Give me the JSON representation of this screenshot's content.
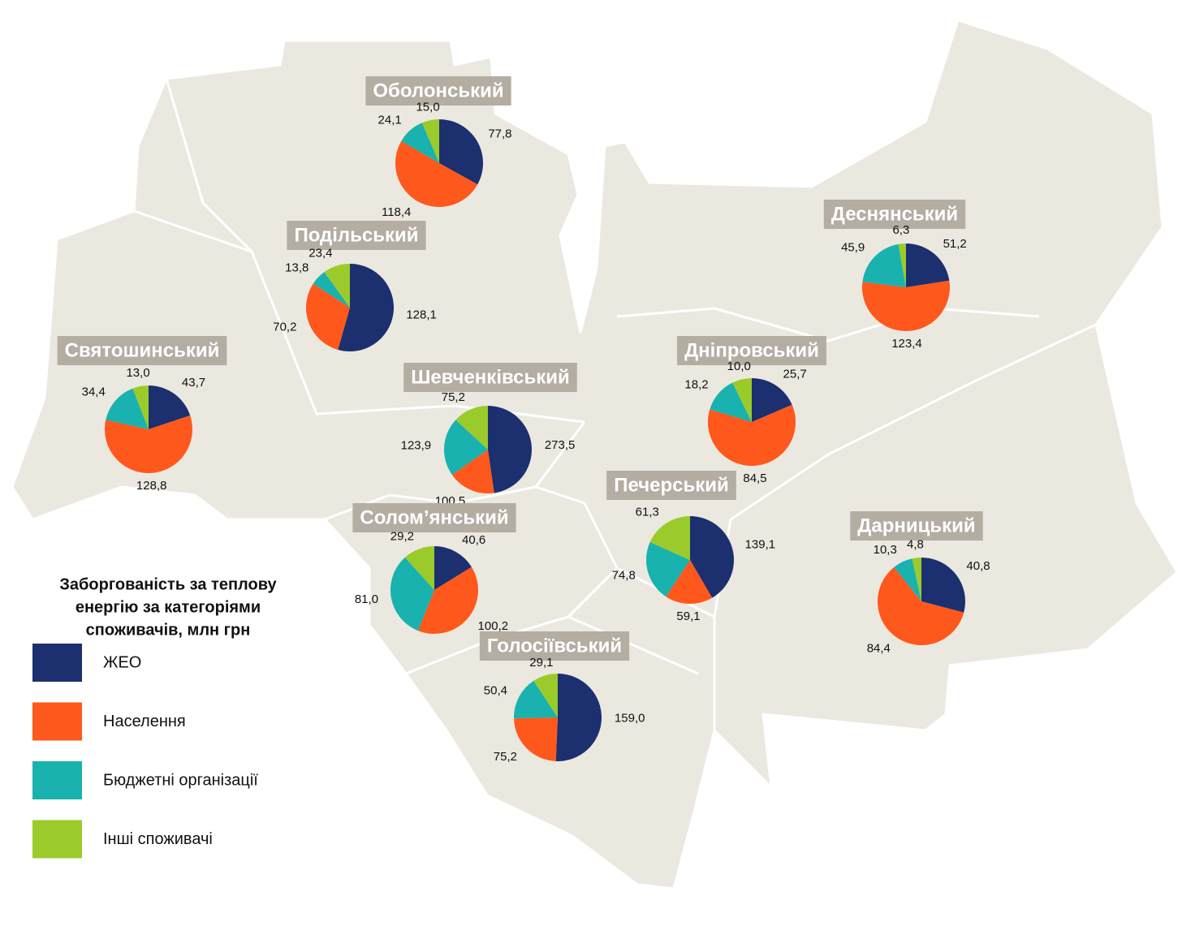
{
  "legend": {
    "title": [
      "Заборгованість за теплову",
      "енергію за категоріями",
      "споживачів, млн грн"
    ],
    "items": [
      {
        "name": "ЖЕО",
        "color": "#1c2f6e"
      },
      {
        "name": "Населення",
        "color": "#ff581c"
      },
      {
        "name": "Бюджетні організації",
        "color": "#19b2ae"
      },
      {
        "name": "Інші споживачі",
        "color": "#9bcb2a"
      }
    ]
  },
  "districts": [
    {
      "name": "Оболонський",
      "values": [
        77.8,
        118.4,
        24.1,
        15.0
      ],
      "value_labels": [
        "77,8",
        "118,4",
        "24,1",
        "15,0"
      ]
    },
    {
      "name": "Подільський",
      "values": [
        128.1,
        70.2,
        13.8,
        23.4
      ],
      "value_labels": [
        "128,1",
        "70,2",
        "13,8",
        "23,4"
      ]
    },
    {
      "name": "Святошинський",
      "values": [
        43.7,
        128.8,
        34.4,
        13.0
      ],
      "value_labels": [
        "43,7",
        "128,8",
        "34,4",
        "13,0"
      ]
    },
    {
      "name": "Шевченківський",
      "values": [
        273.5,
        100.5,
        123.9,
        75.2
      ],
      "value_labels": [
        "273,5",
        "100,5",
        "123,9",
        "75,2"
      ]
    },
    {
      "name": "Солом’янський",
      "values": [
        40.6,
        100.2,
        81.0,
        29.2
      ],
      "value_labels": [
        "40,6",
        "100,2",
        "81,0",
        "29,2"
      ]
    },
    {
      "name": "Голосіївський",
      "values": [
        159.0,
        75.2,
        50.4,
        29.1
      ],
      "value_labels": [
        "159,0",
        "75,2",
        "50,4",
        "29,1"
      ]
    },
    {
      "name": "Печерський",
      "values": [
        139.1,
        59.1,
        74.8,
        61.3
      ],
      "value_labels": [
        "139,1",
        "59,1",
        "74,8",
        "61,3"
      ]
    },
    {
      "name": "Дніпровський",
      "values": [
        25.7,
        84.5,
        18.2,
        10.0
      ],
      "value_labels": [
        "25,7",
        "84,5",
        "18,2",
        "10,0"
      ]
    },
    {
      "name": "Деснянський",
      "values": [
        51.2,
        123.4,
        45.9,
        6.3
      ],
      "value_labels": [
        "51,2",
        "123,4",
        "45,9",
        "6,3"
      ]
    },
    {
      "name": "Дарницький",
      "values": [
        40.8,
        84.4,
        10.3,
        4.8
      ],
      "value_labels": [
        "40,8",
        "84,4",
        "10,3",
        "4,8"
      ]
    }
  ]
}
